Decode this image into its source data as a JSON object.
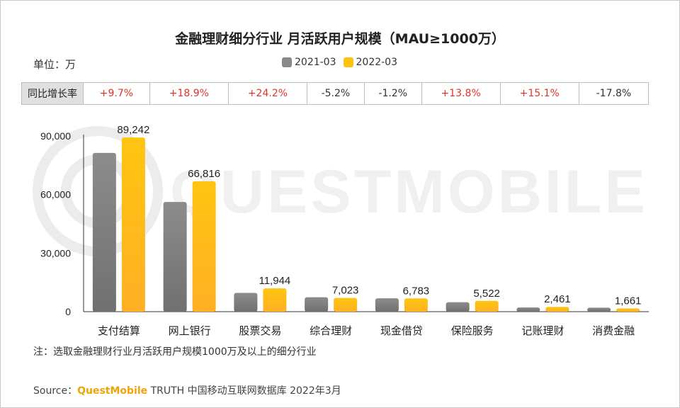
{
  "title": "金融理财细分行业 月活跃用户规模（MAU≥1000万）",
  "unit_label": "单位：万",
  "legend": [
    {
      "name": "2021-03",
      "color": "#8a8a8a"
    },
    {
      "name": "2022-03",
      "color": "#ffc20e"
    }
  ],
  "yoy": {
    "header": "同比增长率",
    "values": [
      "+9.7%",
      "+18.9%",
      "+24.2%",
      "-5.2%",
      "-1.2%",
      "+13.8%",
      "+15.1%",
      "-17.8%"
    ]
  },
  "watermark_text": "QUESTMOBILE",
  "note": "注：选取金融理财行业月活跃用户规模1000万及以上的细分行业",
  "source": {
    "prefix": "Source：",
    "brand": "QuestMobile",
    "suffix": " TRUTH 中国移动互联网数据库 2022年3月"
  },
  "chart_data": {
    "type": "bar",
    "title": "金融理财细分行业 月活跃用户规模（MAU≥1000万）",
    "ylabel": "单位：万",
    "xlabel": "",
    "ylim": [
      0,
      90000
    ],
    "yticks": [
      0,
      30000,
      60000,
      90000
    ],
    "ytick_labels": [
      "0",
      "30,000",
      "60,000",
      "90,000"
    ],
    "categories": [
      "支付结算",
      "网上银行",
      "股票交易",
      "综合理财",
      "现金借贷",
      "保险服务",
      "记账理财",
      "消费金融"
    ],
    "series": [
      {
        "name": "2021-03",
        "values": [
          81350,
          56190,
          9617,
          7408,
          6865,
          4852,
          2138,
          2021
        ]
      },
      {
        "name": "2022-03",
        "values": [
          89242,
          66816,
          11944,
          7023,
          6783,
          5522,
          2461,
          1661
        ],
        "labels": [
          "89,242",
          "66,816",
          "11,944",
          "7,023",
          "6,783",
          "5,522",
          "2,461",
          "1,661"
        ]
      }
    ]
  }
}
